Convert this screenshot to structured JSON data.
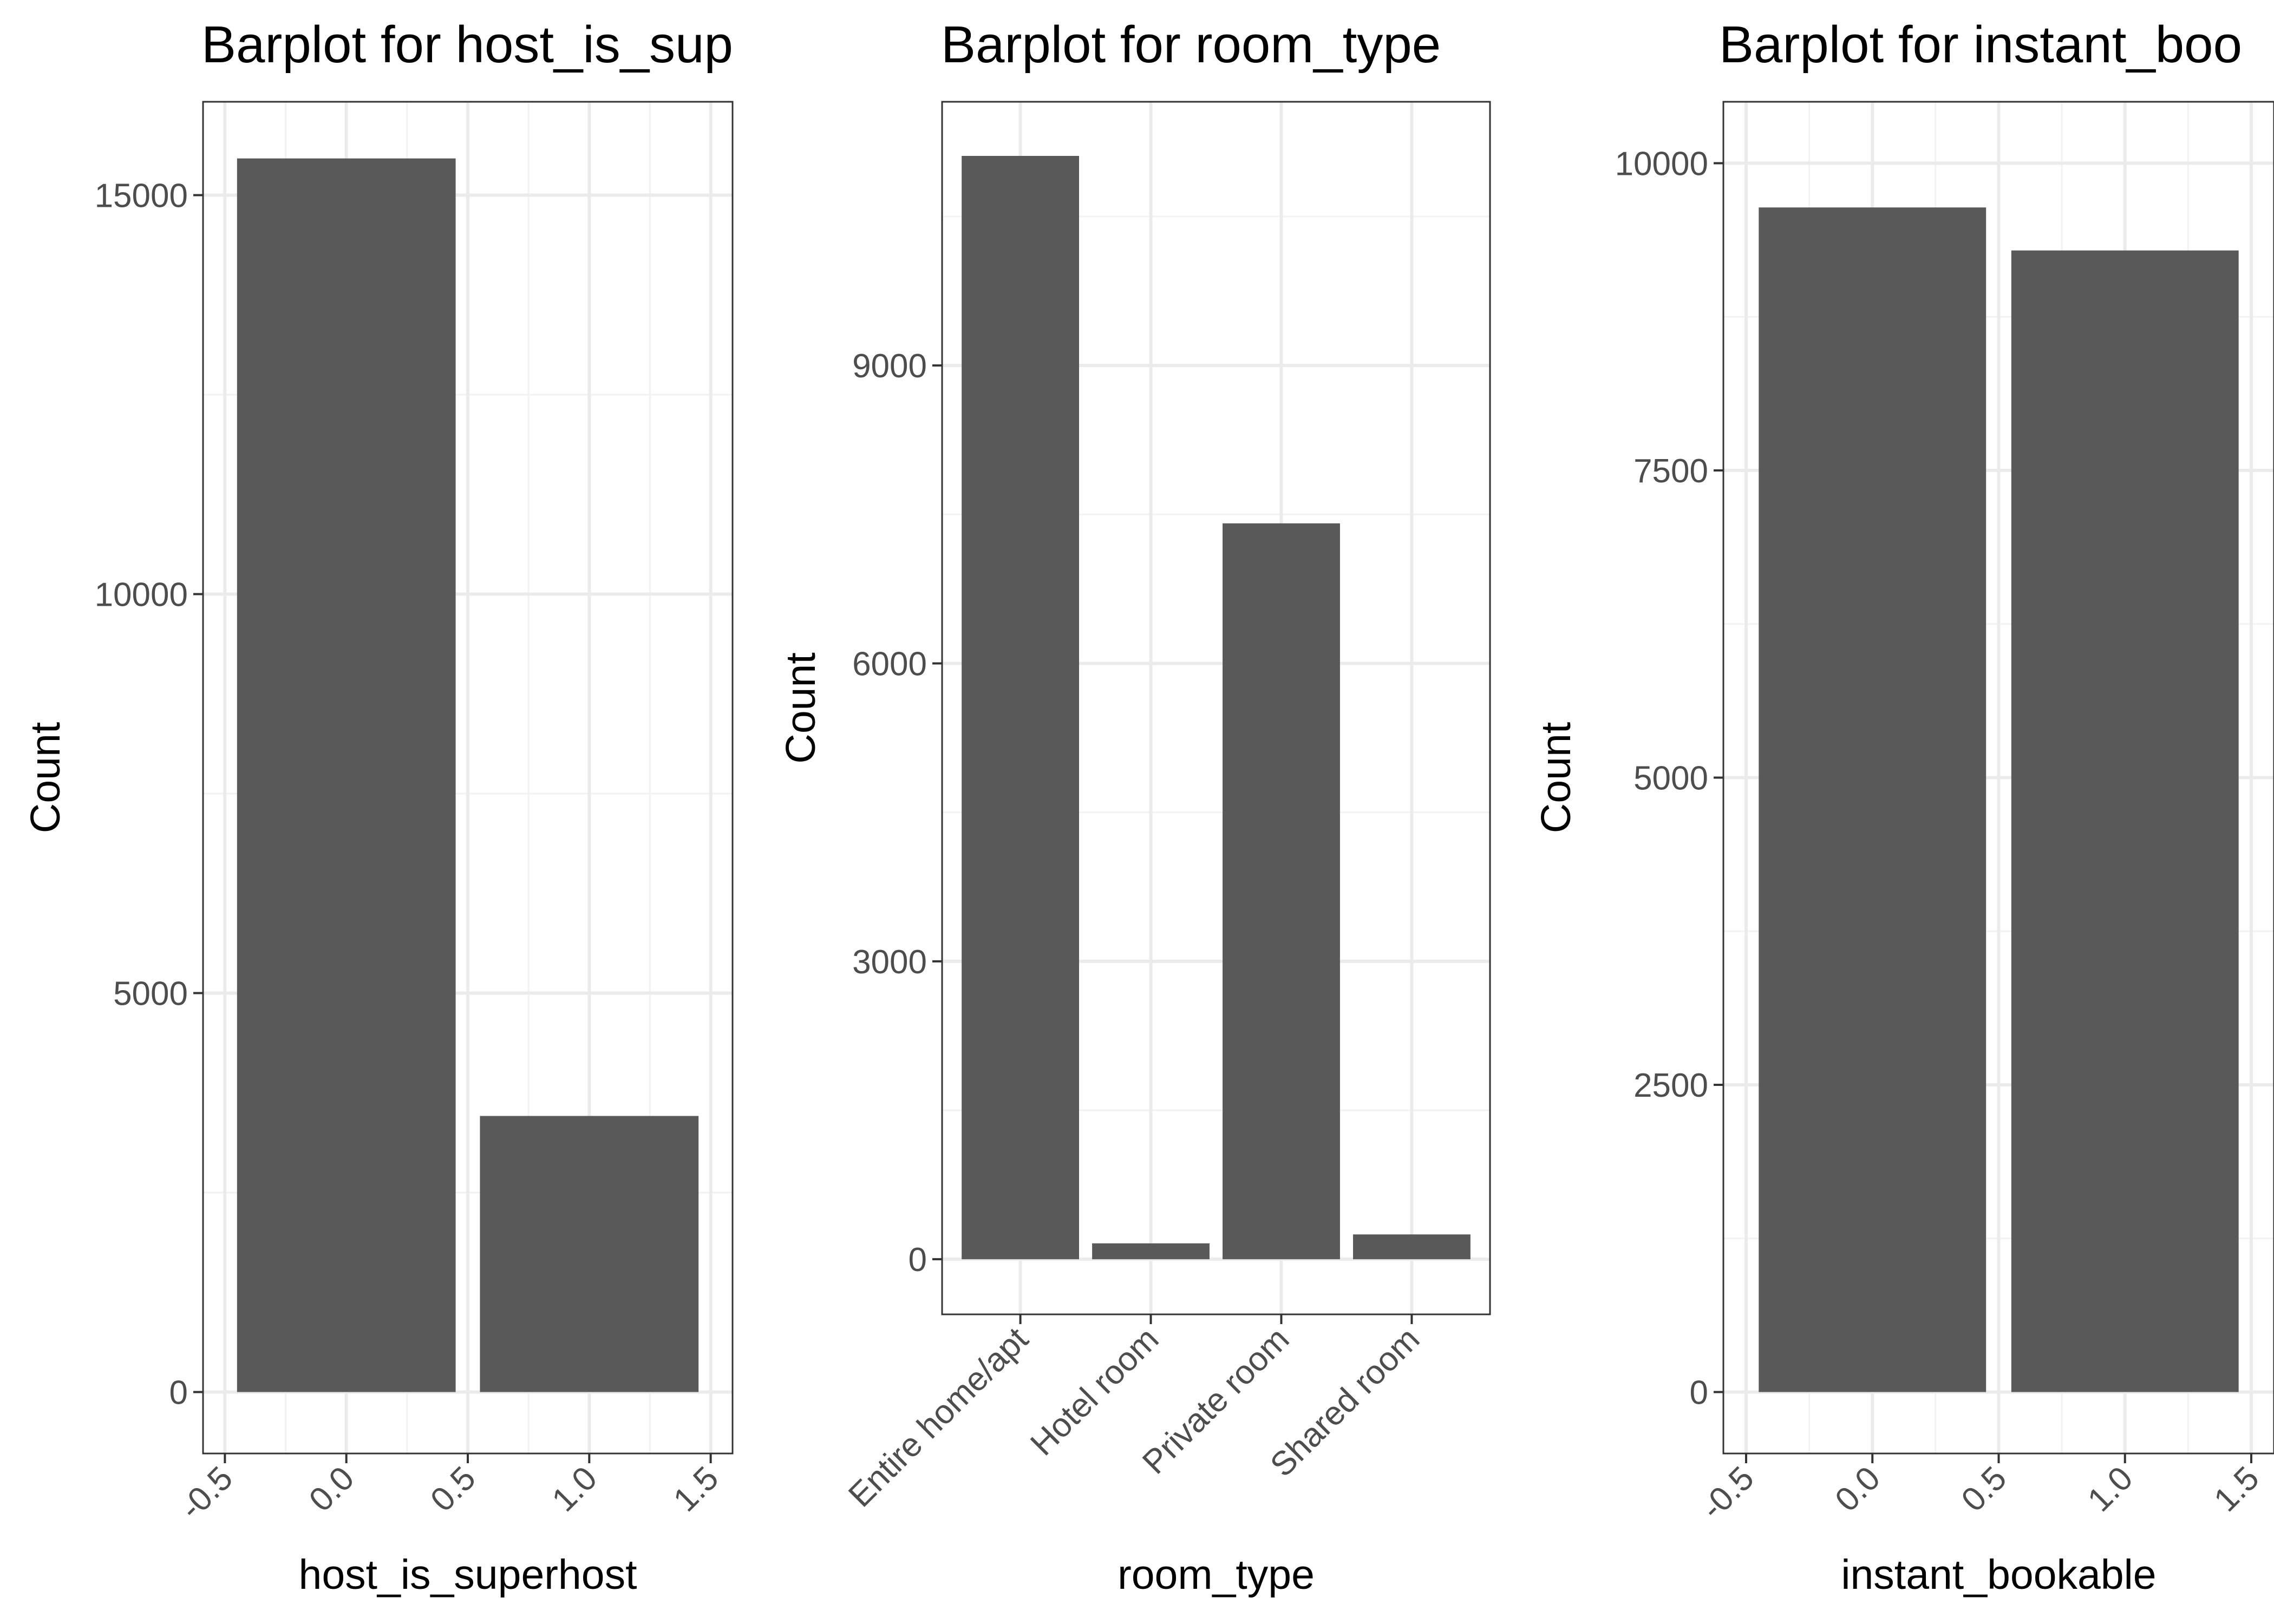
{
  "chart_data": [
    {
      "type": "bar",
      "title": "Barplot for  host_is_sup",
      "xlabel": "host_is_superhost",
      "ylabel": "Count",
      "x_axis": "continuous",
      "xlim": [
        -0.5,
        1.5
      ],
      "x_ticks": [
        "-0.5",
        "0.0",
        "0.5",
        "1.0",
        "1.5"
      ],
      "x_tick_values": [
        -0.5,
        0.0,
        0.5,
        1.0,
        1.5
      ],
      "ylim": [
        0,
        15400
      ],
      "y_ticks": [
        "0",
        "5000",
        "10000",
        "15000"
      ],
      "y_tick_values": [
        0,
        5000,
        10000,
        15000
      ],
      "x": [
        0,
        1
      ],
      "values": [
        15460,
        3460
      ],
      "grid": true,
      "theme": "bw",
      "bar_color": "#595959"
    },
    {
      "type": "bar",
      "title": "Barplot for  room_type",
      "xlabel": "room_type",
      "ylabel": "Count",
      "x_axis": "discrete",
      "categories": [
        "Entire home/apt",
        "Hotel room",
        "Private room",
        "Shared room"
      ],
      "ylim": [
        0,
        11100
      ],
      "y_ticks": [
        "0",
        "3000",
        "6000",
        "9000"
      ],
      "y_tick_values": [
        0,
        3000,
        6000,
        9000
      ],
      "values": [
        11110,
        160,
        7410,
        250
      ],
      "grid": true,
      "theme": "bw",
      "bar_color": "#595959"
    },
    {
      "type": "bar",
      "title": "Barplot for  instant_boo",
      "xlabel": "instant_bookable",
      "ylabel": "Count",
      "x_axis": "continuous",
      "xlim": [
        -0.5,
        1.5
      ],
      "x_ticks": [
        "-0.5",
        "0.0",
        "0.5",
        "1.0",
        "1.5"
      ],
      "x_tick_values": [
        -0.5,
        0.0,
        0.5,
        1.0,
        1.5
      ],
      "ylim": [
        0,
        10000
      ],
      "y_ticks": [
        "0",
        "2500",
        "5000",
        "7500",
        "10000"
      ],
      "y_tick_values": [
        0,
        2500,
        5000,
        7500,
        10000
      ],
      "x": [
        0,
        1
      ],
      "values": [
        9640,
        9290
      ],
      "grid": true,
      "theme": "bw",
      "bar_color": "#595959"
    }
  ]
}
